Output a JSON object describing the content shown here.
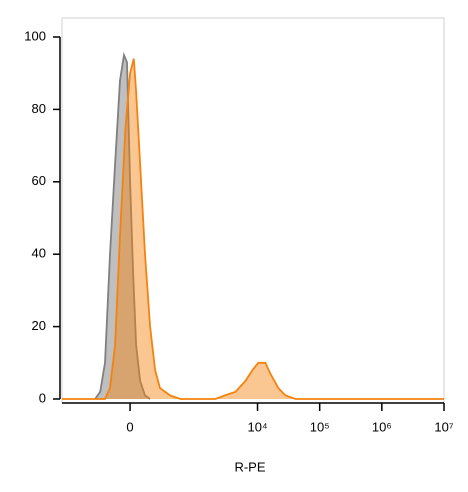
{
  "chart_data": {
    "type": "histogram",
    "xlabel": "R-PE",
    "xscale": "biexponential",
    "xlim": [
      -1100,
      10000000
    ],
    "xticks": [
      0,
      {
        "value": 10000,
        "label": "10⁴"
      },
      {
        "value": 100000,
        "label": "10⁵"
      },
      {
        "value": 1000000,
        "label": "10⁶"
      },
      {
        "value": 10000000,
        "label": "10⁷"
      }
    ],
    "ylim": [
      0,
      100
    ],
    "yticks": [
      0,
      20,
      40,
      60,
      80,
      100
    ],
    "series": [
      {
        "color": "#808080",
        "x": [
          -300,
          -240,
          -190,
          -145,
          -104,
          -68,
          -40,
          -20,
          0,
          20,
          40,
          68,
          104,
          145
        ],
        "values": [
          0,
          2,
          10,
          40,
          65,
          88,
          95,
          93,
          60,
          35,
          15,
          5,
          1,
          0
        ]
      },
      {
        "color": "#f5820f",
        "x": [
          -1100,
          -190,
          -145,
          -104,
          -68,
          -30,
          0,
          25,
          40,
          68,
          104,
          145,
          190,
          240,
          370,
          560,
          2100,
          3000,
          4400,
          6400,
          8300,
          10300,
          13400,
          16100,
          21700,
          28100,
          40900,
          10000000
        ],
        "values": [
          0,
          0,
          3,
          15,
          45,
          75,
          90,
          94,
          85,
          65,
          40,
          20,
          8,
          3,
          1,
          0,
          0,
          1,
          2,
          5,
          8,
          10,
          10,
          7,
          3,
          1,
          0,
          0
        ]
      }
    ]
  }
}
